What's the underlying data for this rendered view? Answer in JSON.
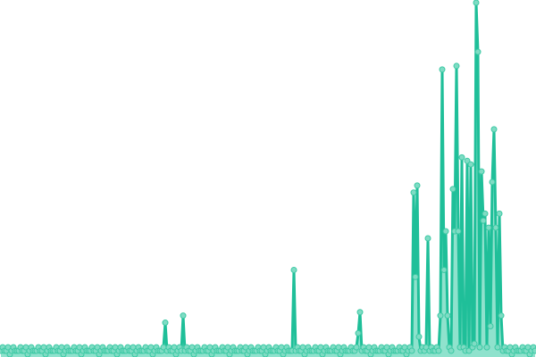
{
  "chart_data": {
    "type": "area",
    "title": "",
    "xlabel": "",
    "ylabel": "",
    "axes_visible": false,
    "grid": false,
    "markers": true,
    "ylim": [
      0,
      100
    ],
    "colors": {
      "line": "#1fbf99",
      "area": "#8fe2cd",
      "marker_fill": "#7fdcc4",
      "marker_stroke": "#3cc9a4"
    },
    "values": [
      1,
      2,
      1,
      1,
      2,
      0,
      1,
      2,
      1,
      1,
      1,
      2,
      1,
      1,
      2,
      0,
      1,
      2,
      1,
      1,
      1,
      2,
      1,
      1,
      2,
      0,
      1,
      2,
      1,
      1,
      1,
      2,
      1,
      1,
      2,
      0,
      1,
      2,
      1,
      1,
      1,
      2,
      1,
      1,
      2,
      0,
      1,
      2,
      1,
      1,
      1,
      2,
      1,
      1,
      2,
      0,
      1,
      2,
      1,
      1,
      1,
      2,
      1,
      1,
      2,
      0,
      1,
      2,
      1,
      1,
      1,
      2,
      1,
      1,
      2,
      0,
      1,
      2,
      1,
      1,
      1,
      2,
      1,
      1,
      2,
      0,
      1,
      2,
      1,
      1,
      1,
      2,
      9,
      1,
      2,
      1,
      1,
      2,
      0,
      1,
      2,
      1,
      11,
      1,
      2,
      1,
      1,
      2,
      0,
      1,
      2,
      1,
      1,
      1,
      2,
      1,
      1,
      2,
      0,
      1,
      2,
      1,
      1,
      1,
      2,
      1,
      1,
      2,
      0,
      1,
      2,
      1,
      1,
      1,
      2,
      1,
      1,
      2,
      0,
      1,
      2,
      1,
      1,
      1,
      2,
      1,
      1,
      2,
      0,
      1,
      2,
      1,
      1,
      1,
      2,
      1,
      1,
      2,
      0,
      1,
      2,
      1,
      1,
      1,
      24,
      1,
      2,
      1,
      1,
      2,
      0,
      1,
      2,
      1,
      1,
      1,
      2,
      1,
      1,
      2,
      0,
      1,
      2,
      1,
      1,
      1,
      2,
      1,
      1,
      2,
      0,
      1,
      2,
      1,
      1,
      1,
      2,
      1,
      1,
      2,
      6,
      12,
      1,
      2,
      1,
      1,
      2,
      0,
      1,
      2,
      1,
      1,
      1,
      2,
      1,
      1,
      2,
      0,
      1,
      2,
      1,
      1,
      1,
      2,
      1,
      1,
      2,
      0,
      1,
      2,
      1,
      46,
      22,
      48,
      5,
      1,
      2,
      1,
      2,
      33,
      1,
      2,
      1,
      1,
      2,
      1,
      11,
      81,
      24,
      35,
      11,
      2,
      1,
      47,
      35,
      82,
      35,
      2,
      56,
      2,
      1,
      55,
      1,
      54,
      2,
      3,
      100,
      86,
      2,
      52,
      38,
      40,
      2,
      36,
      8,
      49,
      64,
      36,
      2,
      40,
      11,
      1,
      2,
      1,
      1,
      2,
      0,
      1,
      2,
      1,
      1,
      1,
      2,
      1,
      1,
      2,
      0,
      1,
      2,
      1
    ]
  }
}
